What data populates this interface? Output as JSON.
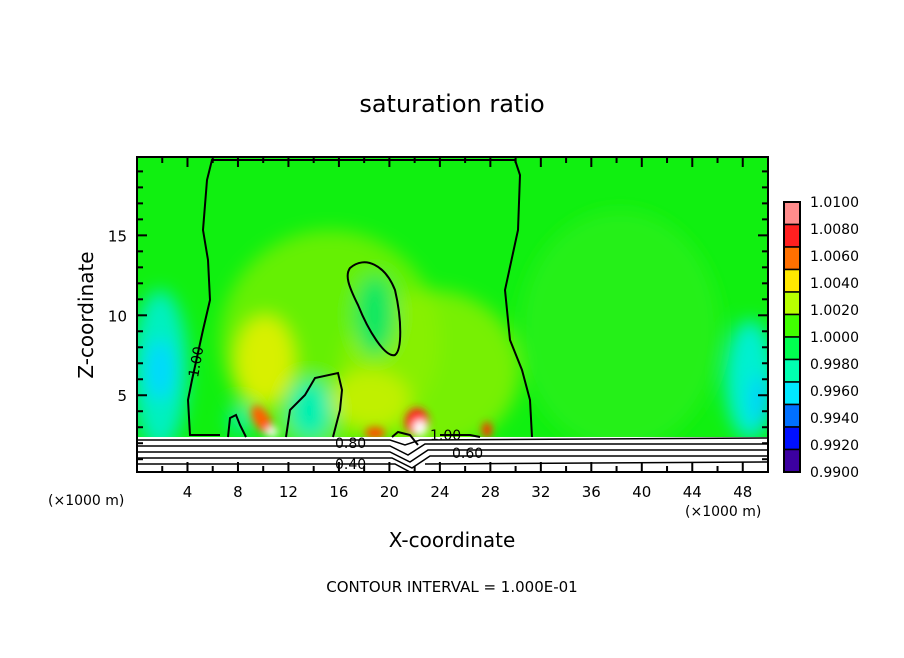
{
  "chart_data": {
    "type": "heatmap",
    "subtype": "filled contour with line contours",
    "title": "saturation ratio",
    "xlabel": "X-coordinate",
    "ylabel": "Z-coordinate",
    "x_unit_label": "(×1000 m)",
    "y_unit_label": "(×1000 m)",
    "xlim": [
      0,
      50
    ],
    "ylim": [
      0.2,
      19.9
    ],
    "x_ticks": [
      4,
      8,
      12,
      16,
      20,
      24,
      28,
      32,
      36,
      40,
      44,
      48
    ],
    "y_ticks": [
      5,
      10,
      15
    ],
    "footer": "CONTOUR INTERVAL = 1.000E-01",
    "contour_interval": 0.1,
    "contour_labels": [
      "1.00",
      "1.00",
      "0.80",
      "0.60",
      "0.40"
    ],
    "colorbar": {
      "labels": [
        "1.0100",
        "1.0080",
        "1.0060",
        "1.0040",
        "1.0020",
        "1.0000",
        "0.9980",
        "0.9960",
        "0.9940",
        "0.9920",
        "0.9900"
      ],
      "min": 0.99,
      "max": 1.01,
      "colors": [
        "#ff8c8c",
        "#ff2020",
        "#ff7000",
        "#ffe800",
        "#b8ff00",
        "#40ff00",
        "#00ff50",
        "#00ffb0",
        "#00e8ff",
        "#0070ff",
        "#0010ff",
        "#3c00a0"
      ]
    },
    "field_colors": {
      "background": "#10f010",
      "ground": "#ffffff"
    }
  }
}
